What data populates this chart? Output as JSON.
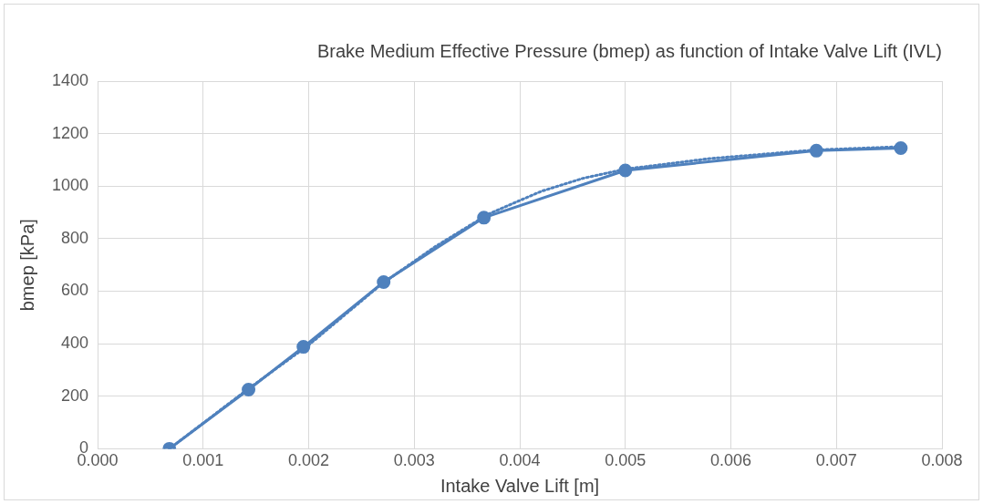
{
  "chart_data": {
    "type": "line",
    "title": "Brake Medium Effective Pressure (bmep) as function of Intake Valve Lift (IVL)",
    "xlabel": "Intake Valve Lift [m]",
    "ylabel": "bmep [kPa]",
    "xlim": [
      0,
      0.008
    ],
    "xticks": [
      {
        "value": 0,
        "label": "0.000"
      },
      {
        "value": 0.001,
        "label": "0.001"
      },
      {
        "value": 0.002,
        "label": "0.002"
      },
      {
        "value": 0.003,
        "label": "0.003"
      },
      {
        "value": 0.004,
        "label": "0.004"
      },
      {
        "value": 0.005,
        "label": "0.005"
      },
      {
        "value": 0.006,
        "label": "0.006"
      },
      {
        "value": 0.007,
        "label": "0.007"
      },
      {
        "value": 0.008,
        "label": "0.008"
      }
    ],
    "ylim": [
      0,
      1400
    ],
    "yticks": [
      0,
      200,
      400,
      600,
      800,
      1000,
      1200,
      1400
    ],
    "grid": true,
    "legend": false,
    "series": [
      {
        "type": "line",
        "color": "#4f81bd",
        "marker": "circle",
        "line_style": "solid",
        "x": [
          0.00068,
          0.00143,
          0.00195,
          0.00271,
          0.00366,
          0.005,
          0.00681,
          0.00761
        ],
        "values": [
          0,
          225,
          388,
          635,
          880,
          1060,
          1135,
          1145
        ]
      },
      {
        "type": "line",
        "color": "#4f81bd",
        "marker": "none",
        "line_style": "dotted",
        "x": [
          0.00068,
          0.0014,
          0.002,
          0.0027,
          0.0032,
          0.0037,
          0.0042,
          0.0046,
          0.005,
          0.0058,
          0.0068,
          0.0076
        ],
        "values": [
          0,
          220,
          395,
          630,
          770,
          893,
          980,
          1030,
          1065,
          1105,
          1138,
          1150
        ]
      }
    ]
  }
}
